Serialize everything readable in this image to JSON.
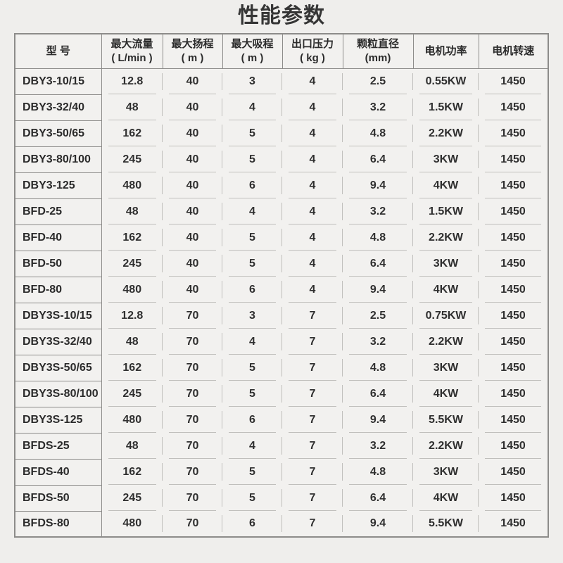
{
  "title": "性能参数",
  "table": {
    "columns": [
      {
        "label": "型 号",
        "unit": ""
      },
      {
        "label": "最大流量",
        "unit": "( L/min )"
      },
      {
        "label": "最大扬程",
        "unit": "( m )"
      },
      {
        "label": "最大吸程",
        "unit": "( m )"
      },
      {
        "label": "出口压力",
        "unit": "( kg )"
      },
      {
        "label": "颗粒直径",
        "unit": "(mm)"
      },
      {
        "label": "电机功率",
        "unit": ""
      },
      {
        "label": "电机转速",
        "unit": ""
      }
    ],
    "rows": [
      {
        "model": "DBY3-10/15",
        "values": [
          "12.8",
          "40",
          "3",
          "4",
          "2.5",
          "0.55KW",
          "1450"
        ]
      },
      {
        "model": "DBY3-32/40",
        "values": [
          "48",
          "40",
          "4",
          "4",
          "3.2",
          "1.5KW",
          "1450"
        ]
      },
      {
        "model": "DBY3-50/65",
        "values": [
          "162",
          "40",
          "5",
          "4",
          "4.8",
          "2.2KW",
          "1450"
        ]
      },
      {
        "model": "DBY3-80/100",
        "values": [
          "245",
          "40",
          "5",
          "4",
          "6.4",
          "3KW",
          "1450"
        ]
      },
      {
        "model": "DBY3-125",
        "values": [
          "480",
          "40",
          "6",
          "4",
          "9.4",
          "4KW",
          "1450"
        ]
      },
      {
        "model": "BFD-25",
        "values": [
          "48",
          "40",
          "4",
          "4",
          "3.2",
          "1.5KW",
          "1450"
        ]
      },
      {
        "model": "BFD-40",
        "values": [
          "162",
          "40",
          "5",
          "4",
          "4.8",
          "2.2KW",
          "1450"
        ]
      },
      {
        "model": "BFD-50",
        "values": [
          "245",
          "40",
          "5",
          "4",
          "6.4",
          "3KW",
          "1450"
        ]
      },
      {
        "model": "BFD-80",
        "values": [
          "480",
          "40",
          "6",
          "4",
          "9.4",
          "4KW",
          "1450"
        ]
      },
      {
        "model": "DBY3S-10/15",
        "values": [
          "12.8",
          "70",
          "3",
          "7",
          "2.5",
          "0.75KW",
          "1450"
        ]
      },
      {
        "model": "DBY3S-32/40",
        "values": [
          "48",
          "70",
          "4",
          "7",
          "3.2",
          "2.2KW",
          "1450"
        ]
      },
      {
        "model": "DBY3S-50/65",
        "values": [
          "162",
          "70",
          "5",
          "7",
          "4.8",
          "3KW",
          "1450"
        ]
      },
      {
        "model": "DBY3S-80/100",
        "values": [
          "245",
          "70",
          "5",
          "7",
          "6.4",
          "4KW",
          "1450"
        ]
      },
      {
        "model": "DBY3S-125",
        "values": [
          "480",
          "70",
          "6",
          "7",
          "9.4",
          "5.5KW",
          "1450"
        ]
      },
      {
        "model": "BFDS-25",
        "values": [
          "48",
          "70",
          "4",
          "7",
          "3.2",
          "2.2KW",
          "1450"
        ]
      },
      {
        "model": "BFDS-40",
        "values": [
          "162",
          "70",
          "5",
          "7",
          "4.8",
          "3KW",
          "1450"
        ]
      },
      {
        "model": "BFDS-50",
        "values": [
          "245",
          "70",
          "5",
          "7",
          "6.4",
          "4KW",
          "1450"
        ]
      },
      {
        "model": "BFDS-80",
        "values": [
          "480",
          "70",
          "6",
          "7",
          "9.4",
          "5.5KW",
          "1450"
        ]
      }
    ]
  }
}
